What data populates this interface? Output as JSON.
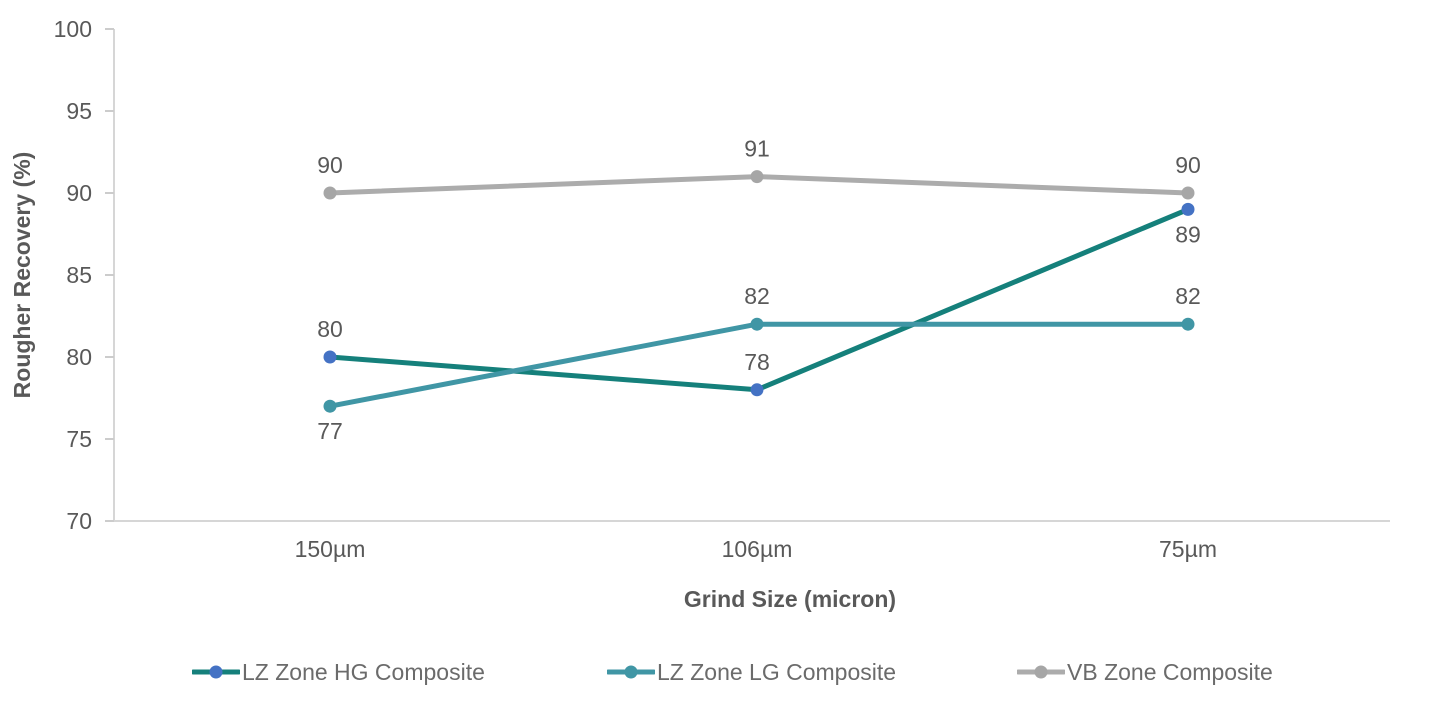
{
  "page": {
    "background_color": "#FFFFFF"
  },
  "chart_data": {
    "type": "line",
    "title": "",
    "xlabel": "Grind Size (micron)",
    "ylabel": "Rougher Recovery (%)",
    "categories": [
      "150µm",
      "106µm",
      "75µm"
    ],
    "ylim": [
      70,
      100
    ],
    "ytick_step": 5,
    "ytick_labels": [
      "70",
      "75",
      "80",
      "85",
      "90",
      "95",
      "100"
    ],
    "grid": false,
    "legend_position": "bottom",
    "axis_color": "#D6D6D6",
    "tick_color": "#CCCCCC",
    "text_color": "#595959",
    "legend_text_color": "#6B6B6B",
    "marker_style": "circle",
    "series": [
      {
        "name": "LZ Zone HG Composite",
        "values": [
          80,
          78,
          89
        ],
        "data_labels": [
          "80",
          "78",
          "89"
        ],
        "label_positions": [
          "above",
          "above",
          "below"
        ],
        "line_color": "#15807B",
        "marker_color": "#4472C4"
      },
      {
        "name": "LZ Zone LG Composite",
        "values": [
          77,
          82,
          82
        ],
        "data_labels": [
          "77",
          "82",
          "82"
        ],
        "label_positions": [
          "below",
          "above",
          "above"
        ],
        "line_color": "#4096A5",
        "marker_color": "#4096A5"
      },
      {
        "name": "VB Zone Composite",
        "values": [
          90,
          91,
          90
        ],
        "data_labels": [
          "90",
          "91",
          "90"
        ],
        "label_positions": [
          "above",
          "above",
          "above"
        ],
        "line_color": "#ACACAC",
        "marker_color": "#A6A6A6"
      }
    ]
  }
}
